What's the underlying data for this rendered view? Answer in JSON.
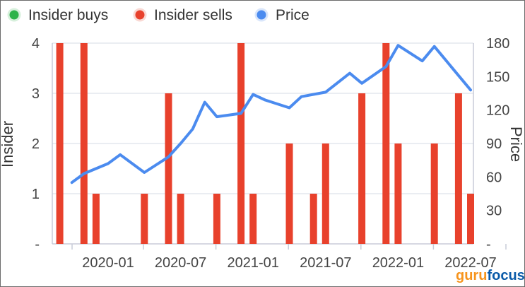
{
  "chart_data": {
    "type": "bar+line",
    "legend": {
      "placement": "top-left",
      "items": [
        {
          "label": "Insider buys",
          "color": "#2db34a"
        },
        {
          "label": "Insider sells",
          "color": "#e8412c"
        },
        {
          "label": "Price",
          "color": "#4b8bef"
        }
      ]
    },
    "y_left": {
      "label": "Insider",
      "range": [
        0,
        4
      ],
      "ticks": [
        "-",
        "1",
        "2",
        "3",
        "4"
      ]
    },
    "y_right": {
      "label": "Price",
      "range": [
        0,
        180
      ],
      "ticks": [
        "-",
        "30",
        "60",
        "90",
        "120",
        "150",
        "180"
      ]
    },
    "x_axis": {
      "ticks": [
        {
          "label": "2020-01",
          "date": "2020-01"
        },
        {
          "label": "2020-07",
          "date": "2020-07"
        },
        {
          "label": "2021-01",
          "date": "2021-01"
        },
        {
          "label": "2021-07",
          "date": "2021-07"
        },
        {
          "label": "2022-01",
          "date": "2022-01"
        },
        {
          "label": "2022-07",
          "date": "2022-07"
        }
      ]
    },
    "insider_sells": [
      {
        "date": "2019-09",
        "value": 4
      },
      {
        "date": "2019-11",
        "value": 4
      },
      {
        "date": "2019-12",
        "value": 1
      },
      {
        "date": "2020-04",
        "value": 1
      },
      {
        "date": "2020-06",
        "value": 3
      },
      {
        "date": "2020-07",
        "value": 1
      },
      {
        "date": "2020-10",
        "value": 1
      },
      {
        "date": "2020-12",
        "value": 4
      },
      {
        "date": "2021-01",
        "value": 1
      },
      {
        "date": "2021-04",
        "value": 2
      },
      {
        "date": "2021-06",
        "value": 1
      },
      {
        "date": "2021-07",
        "value": 2
      },
      {
        "date": "2021-10",
        "value": 3
      },
      {
        "date": "2021-12",
        "value": 4
      },
      {
        "date": "2022-01",
        "value": 2
      },
      {
        "date": "2022-04",
        "value": 2
      },
      {
        "date": "2022-06",
        "value": 3
      },
      {
        "date": "2022-07",
        "value": 1
      }
    ],
    "insider_buys": [],
    "price": [
      {
        "date": "2019-10",
        "value": 55
      },
      {
        "date": "2019-11",
        "value": 63
      },
      {
        "date": "2020-01",
        "value": 72
      },
      {
        "date": "2020-02",
        "value": 80
      },
      {
        "date": "2020-04",
        "value": 64
      },
      {
        "date": "2020-06",
        "value": 78
      },
      {
        "date": "2020-07",
        "value": 90
      },
      {
        "date": "2020-08",
        "value": 103
      },
      {
        "date": "2020-09",
        "value": 127
      },
      {
        "date": "2020-10",
        "value": 114
      },
      {
        "date": "2020-12",
        "value": 117
      },
      {
        "date": "2021-01",
        "value": 134
      },
      {
        "date": "2021-02",
        "value": 129
      },
      {
        "date": "2021-04",
        "value": 122
      },
      {
        "date": "2021-05",
        "value": 132
      },
      {
        "date": "2021-07",
        "value": 136
      },
      {
        "date": "2021-09",
        "value": 153
      },
      {
        "date": "2021-10",
        "value": 144
      },
      {
        "date": "2021-12",
        "value": 159
      },
      {
        "date": "2022-01",
        "value": 178
      },
      {
        "date": "2022-03",
        "value": 164
      },
      {
        "date": "2022-04",
        "value": 177
      },
      {
        "date": "2022-06",
        "value": 151
      },
      {
        "date": "2022-07",
        "value": 138
      }
    ]
  },
  "watermark": {
    "part1": "guru",
    "part2": "focus"
  }
}
